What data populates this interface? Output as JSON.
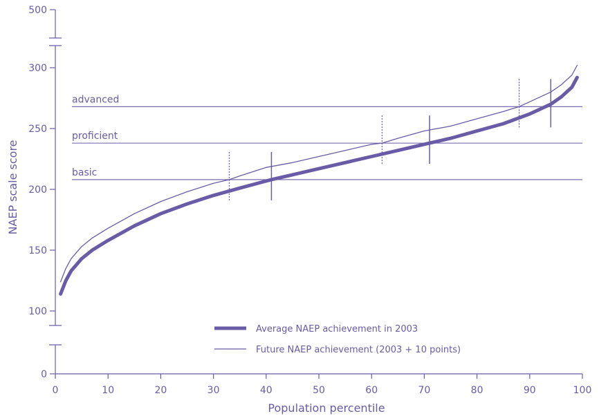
{
  "colors": {
    "primary": "#6a5ba6",
    "axis": "#6a5ba6"
  },
  "chart_data": {
    "type": "line",
    "title": "",
    "xlabel": "Population percentile",
    "ylabel": "NAEP scale score",
    "xlim": [
      0,
      100
    ],
    "x_ticks": [
      0,
      10,
      20,
      30,
      40,
      50,
      60,
      70,
      80,
      90,
      100
    ],
    "y_ticks": [
      0,
      100,
      150,
      200,
      250,
      300,
      500
    ],
    "y_axis_breaks": [
      "0-100",
      "300-500"
    ],
    "grid": false,
    "legend_position": "bottom-center",
    "achievement_levels": [
      {
        "label": "basic",
        "score": 208
      },
      {
        "label": "proficient",
        "score": 238
      },
      {
        "label": "advanced",
        "score": 268
      }
    ],
    "series": [
      {
        "name": "Average NAEP achievement in 2003",
        "style": "thick",
        "x": [
          1,
          2,
          3,
          5,
          7,
          10,
          15,
          20,
          25,
          30,
          35,
          41,
          45,
          50,
          55,
          60,
          65,
          71,
          75,
          80,
          85,
          90,
          94,
          96,
          98,
          99
        ],
        "y": [
          114,
          125,
          133,
          143,
          150,
          158,
          170,
          180,
          188,
          195,
          201,
          208,
          212,
          217,
          222,
          227,
          232,
          238,
          242,
          248,
          254,
          262,
          270,
          276,
          284,
          292
        ]
      },
      {
        "name": "Future NAEP achievement (2003 + 10 points)",
        "style": "thin",
        "x": [
          1,
          2,
          3,
          5,
          7,
          10,
          15,
          20,
          25,
          30,
          33,
          35,
          40,
          45,
          50,
          55,
          60,
          62,
          65,
          70,
          75,
          80,
          85,
          88,
          90,
          94,
          96,
          98,
          99
        ],
        "y": [
          124,
          135,
          143,
          153,
          160,
          168,
          180,
          190,
          198,
          205,
          208,
          211,
          218,
          222,
          227,
          232,
          237,
          238,
          242,
          248,
          252,
          258,
          264,
          268,
          272,
          280,
          286,
          294,
          302
        ]
      }
    ],
    "markers": [
      {
        "series": "Average NAEP achievement in 2003",
        "x": 41,
        "level": "basic"
      },
      {
        "series": "Average NAEP achievement in 2003",
        "x": 71,
        "level": "proficient"
      },
      {
        "series": "Average NAEP achievement in 2003",
        "x": 94,
        "level": "advanced"
      },
      {
        "series": "Future NAEP achievement (2003 + 10 points)",
        "x": 33,
        "level": "basic"
      },
      {
        "series": "Future NAEP achievement (2003 + 10 points)",
        "x": 62,
        "level": "proficient"
      },
      {
        "series": "Future NAEP achievement (2003 + 10 points)",
        "x": 88,
        "level": "advanced"
      }
    ]
  }
}
